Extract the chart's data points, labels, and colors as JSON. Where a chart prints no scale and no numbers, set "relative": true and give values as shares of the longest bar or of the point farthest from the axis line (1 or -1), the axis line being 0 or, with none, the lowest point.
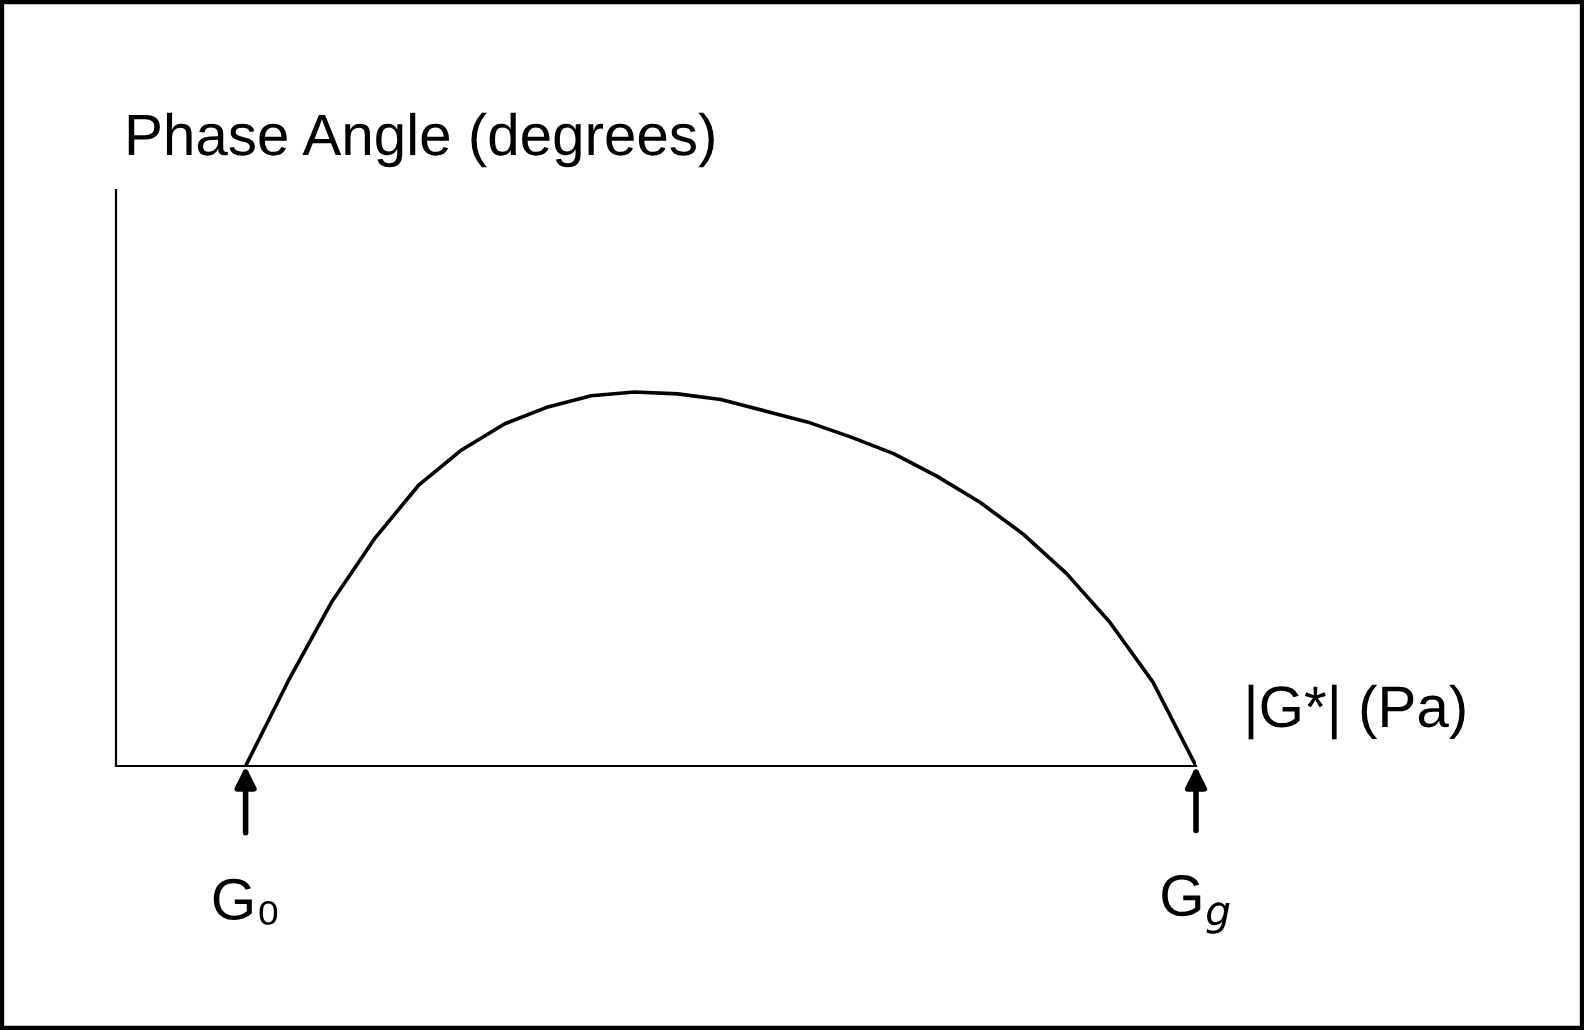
{
  "chart_data": {
    "type": "line",
    "relative": true,
    "ylabel": "Phase Angle (degrees)",
    "xlabel": "|G*| (Pa)",
    "color": "#000000",
    "categories": [
      null,
      null,
      null,
      null,
      null,
      null,
      null,
      null,
      null,
      null,
      null,
      null,
      null,
      null,
      null,
      null,
      null,
      null,
      null,
      null,
      null,
      null,
      null,
      null,
      null,
      null
    ],
    "values": [
      null,
      null,
      null,
      0,
      0.23,
      0.44,
      0.61,
      0.75,
      0.845,
      0.915,
      0.96,
      0.99,
      1,
      0.995,
      0.98,
      0.95,
      0.92,
      0.88,
      0.835,
      0.775,
      0.705,
      0.62,
      0.515,
      0.385,
      0.225,
      0
    ],
    "annotations": [
      "G₀",
      "G$_{g}$"
    ],
    "grid": false,
    "legend": false,
    "marker": "none",
    "line_style": "solid"
  }
}
